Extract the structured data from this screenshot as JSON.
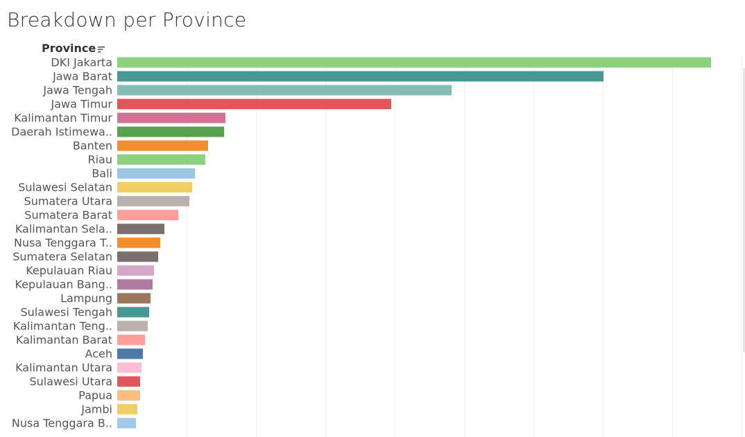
{
  "title": "Breakdown per Province",
  "field_header": {
    "label": "Province",
    "sort_icon": "sort-descending-icon"
  },
  "chart_data": {
    "type": "bar",
    "orientation": "horizontal",
    "title": "Breakdown per Province",
    "ylabel": "Province",
    "xlabel": "",
    "grid": true,
    "categories": [
      "DKI Jakarta",
      "Jawa Barat",
      "Jawa Tengah",
      "Jawa Timur",
      "Kalimantan Timur",
      "Daerah Istimewa..",
      "Banten",
      "Riau",
      "Bali",
      "Sulawesi Selatan",
      "Sumatera Utara",
      "Sumatera Barat",
      "Kalimantan Sela..",
      "Nusa Tenggara T..",
      "Sumatera Selatan",
      "Kepulauan Riau",
      "Kepulauan Bang..",
      "Lampung",
      "Sulawesi Tengah",
      "Kalimantan Teng..",
      "Kalimantan Barat",
      "Aceh",
      "Kalimantan Utara",
      "Sulawesi Utara",
      "Papua",
      "Jambi",
      "Nusa Tenggara B.."
    ],
    "values": [
      856,
      701,
      482,
      395,
      156,
      154,
      131,
      127,
      112,
      108,
      104,
      88,
      68,
      62,
      59,
      53,
      51,
      48,
      46,
      44,
      40,
      37,
      35,
      33,
      33,
      29,
      27
    ],
    "colors": [
      "#8cd17d",
      "#499894",
      "#86bcb6",
      "#e15759",
      "#d37295",
      "#59a14f",
      "#f28e2b",
      "#8cd17d",
      "#9dc6e0",
      "#f1ce63",
      "#bab0ac",
      "#ff9d9a",
      "#79706e",
      "#f28e2b",
      "#79706e",
      "#d4a6c8",
      "#b07aa1",
      "#9d7660",
      "#499894",
      "#bab0ac",
      "#ff9d9a",
      "#4e79a7",
      "#fabfd2",
      "#e15759",
      "#ffbe7d",
      "#f1ce63",
      "#a0cbe8"
    ],
    "xlim": [
      0,
      900
    ],
    "gridline_step": 100
  }
}
